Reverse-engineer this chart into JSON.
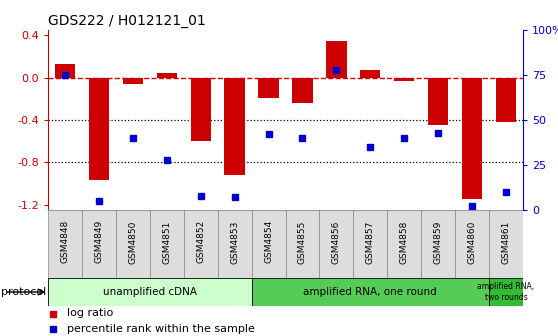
{
  "title": "GDS222 / H012121_01",
  "samples": [
    "GSM4848",
    "GSM4849",
    "GSM4850",
    "GSM4851",
    "GSM4852",
    "GSM4853",
    "GSM4854",
    "GSM4855",
    "GSM4856",
    "GSM4857",
    "GSM4858",
    "GSM4859",
    "GSM4860",
    "GSM4861"
  ],
  "log_ratio": [
    0.13,
    -0.97,
    -0.06,
    0.04,
    -0.6,
    -0.92,
    -0.19,
    -0.24,
    0.35,
    0.07,
    -0.03,
    -0.45,
    -1.15,
    -0.42
  ],
  "percentile": [
    75,
    5,
    40,
    28,
    8,
    7,
    42,
    40,
    78,
    35,
    40,
    43,
    2,
    10
  ],
  "bar_color": "#cc0000",
  "dot_color": "#0000cc",
  "ref_line_color": "#cc0000",
  "grid_color": "#000000",
  "bg_color": "#ffffff",
  "protocol_groups": [
    {
      "label": "unamplified cDNA",
      "start": 0,
      "end": 5,
      "color": "#ccffcc"
    },
    {
      "label": "amplified RNA, one round",
      "start": 6,
      "end": 12,
      "color": "#55cc55"
    },
    {
      "label": "amplified RNA,\ntwo rounds",
      "start": 13,
      "end": 13,
      "color": "#33bb33"
    }
  ],
  "ylim": [
    -1.25,
    0.45
  ],
  "yticks_left": [
    -1.2,
    -0.8,
    -0.4,
    0.0,
    0.4
  ],
  "yticks_right_pct": [
    0,
    25,
    50,
    75,
    100
  ]
}
